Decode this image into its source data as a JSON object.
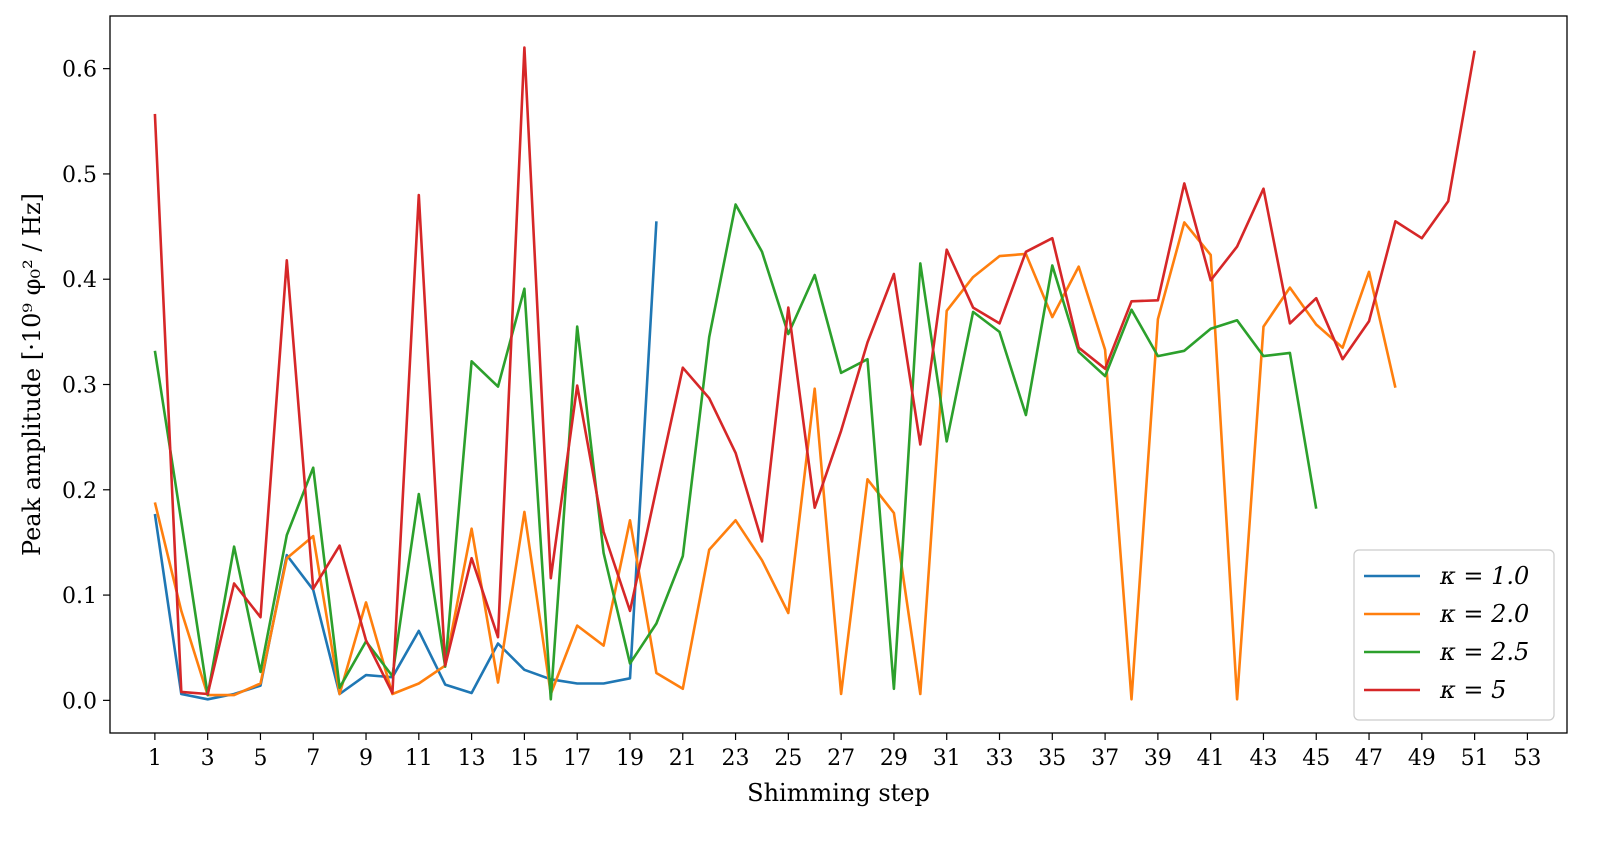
{
  "chart_data": {
    "type": "line",
    "xlabel": "Shimming step",
    "ylabel": "Peak amplitude [·10⁹ φ₀² / Hz]",
    "xlim": [
      -0.7,
      54.5
    ],
    "ylim": [
      -0.031,
      0.65
    ],
    "xticks": [
      1,
      3,
      5,
      7,
      9,
      11,
      13,
      15,
      17,
      19,
      21,
      23,
      25,
      27,
      29,
      31,
      33,
      35,
      37,
      39,
      41,
      43,
      45,
      47,
      49,
      51,
      53
    ],
    "yticks": [
      0.0,
      0.1,
      0.2,
      0.3,
      0.4,
      0.5,
      0.6
    ],
    "ytick_labels": [
      "0.0",
      "0.1",
      "0.2",
      "0.3",
      "0.4",
      "0.5",
      "0.6"
    ],
    "grid": false,
    "legend_position": "bottom-right",
    "series": [
      {
        "name": "κ = 1.0",
        "color": "#1f77b4",
        "x": [
          1,
          2,
          3,
          4,
          5,
          6,
          7,
          8,
          9,
          10,
          11,
          12,
          13,
          14,
          15,
          16,
          17,
          18,
          19,
          20
        ],
        "values": [
          0.177,
          0.006,
          0.001,
          0.006,
          0.014,
          0.138,
          0.105,
          0.006,
          0.024,
          0.022,
          0.066,
          0.015,
          0.007,
          0.054,
          0.029,
          0.02,
          0.016,
          0.016,
          0.021,
          0.455
        ]
      },
      {
        "name": "κ = 2.0",
        "color": "#ff7f0e",
        "x": [
          1,
          2,
          3,
          4,
          5,
          6,
          7,
          8,
          9,
          10,
          11,
          12,
          13,
          14,
          15,
          16,
          17,
          18,
          19,
          20,
          21,
          22,
          23,
          24,
          25,
          26,
          27,
          28,
          29,
          30,
          31,
          32,
          33,
          34,
          35,
          36,
          37,
          38,
          39,
          40,
          41,
          42,
          43,
          44,
          45,
          46,
          47,
          48
        ],
        "values": [
          0.188,
          0.085,
          0.005,
          0.005,
          0.016,
          0.135,
          0.156,
          0.006,
          0.093,
          0.006,
          0.016,
          0.033,
          0.163,
          0.017,
          0.179,
          0.006,
          0.071,
          0.052,
          0.171,
          0.026,
          0.011,
          0.143,
          0.171,
          0.133,
          0.083,
          0.296,
          0.006,
          0.21,
          0.178,
          0.006,
          0.37,
          0.402,
          0.422,
          0.424,
          0.364,
          0.412,
          0.333,
          0.001,
          0.362,
          0.454,
          0.423,
          0.001,
          0.355,
          0.392,
          0.357,
          0.335,
          0.407,
          0.297
        ]
      },
      {
        "name": "κ = 2.5",
        "color": "#2ca02c",
        "x": [
          1,
          2,
          3,
          4,
          5,
          6,
          7,
          8,
          9,
          10,
          11,
          12,
          13,
          14,
          15,
          16,
          17,
          18,
          19,
          20,
          21,
          22,
          23,
          24,
          25,
          26,
          27,
          28,
          29,
          30,
          31,
          32,
          33,
          34,
          35,
          36,
          37,
          38,
          39,
          40,
          41,
          42,
          43,
          44,
          45
        ],
        "values": [
          0.332,
          0.17,
          0.005,
          0.146,
          0.027,
          0.157,
          0.221,
          0.012,
          0.056,
          0.023,
          0.196,
          0.032,
          0.322,
          0.298,
          0.391,
          0.001,
          0.355,
          0.14,
          0.035,
          0.073,
          0.137,
          0.345,
          0.471,
          0.426,
          0.348,
          0.404,
          0.311,
          0.324,
          0.011,
          0.415,
          0.246,
          0.369,
          0.35,
          0.271,
          0.413,
          0.331,
          0.308,
          0.371,
          0.327,
          0.332,
          0.353,
          0.361,
          0.327,
          0.33,
          0.182
        ]
      },
      {
        "name": "κ = 5",
        "color": "#d62728",
        "x": [
          1,
          2,
          3,
          4,
          5,
          6,
          7,
          8,
          9,
          10,
          11,
          12,
          13,
          14,
          15,
          16,
          17,
          18,
          19,
          20,
          21,
          22,
          23,
          24,
          25,
          26,
          27,
          28,
          29,
          30,
          31,
          32,
          33,
          34,
          35,
          36,
          37,
          38,
          39,
          40,
          41,
          42,
          43,
          44,
          45,
          46,
          47,
          48,
          49,
          50,
          51
        ],
        "values": [
          0.557,
          0.008,
          0.006,
          0.111,
          0.079,
          0.418,
          0.106,
          0.147,
          0.057,
          0.007,
          0.48,
          0.033,
          0.135,
          0.06,
          0.62,
          0.116,
          0.299,
          0.16,
          0.085,
          0.201,
          0.316,
          0.287,
          0.235,
          0.151,
          0.373,
          0.183,
          0.256,
          0.34,
          0.405,
          0.243,
          0.428,
          0.373,
          0.358,
          0.426,
          0.439,
          0.335,
          0.315,
          0.379,
          0.38,
          0.491,
          0.399,
          0.431,
          0.486,
          0.358,
          0.382,
          0.324,
          0.36,
          0.455,
          0.439,
          0.474,
          0.617
        ]
      }
    ]
  }
}
